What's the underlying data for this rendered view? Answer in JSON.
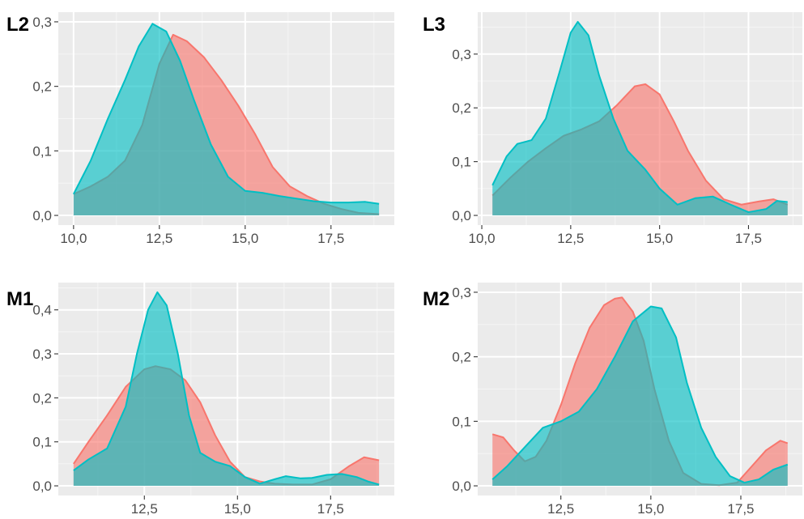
{
  "colors": {
    "panel_bg": "#EBEBEB",
    "grid_major": "#FFFFFF",
    "grid_minor": "#F5F5F5",
    "tick_text": "#4D4D4D",
    "tick_mark": "#333333",
    "series_red": "#F8766D",
    "series_teal": "#00BFC4",
    "tag_text": "#000000"
  },
  "chart_data": [
    {
      "tag": "L2",
      "type": "area",
      "subtype": "density",
      "xlim": [
        10.0,
        18.9
      ],
      "ylim": [
        0.0,
        0.3
      ],
      "x_ticks": [
        10.0,
        12.5,
        15.0,
        17.5
      ],
      "x_tick_labels": [
        "10,0",
        "12,5",
        "15,0",
        "17,5"
      ],
      "y_ticks": [
        0.0,
        0.1,
        0.2,
        0.3
      ],
      "y_tick_labels": [
        "0,0",
        "0,1",
        "0,2",
        "0,3"
      ],
      "grid": true,
      "legend": "none",
      "series": [
        {
          "color": "#F8766D",
          "x": [
            10.0,
            10.5,
            11.0,
            11.5,
            12.0,
            12.5,
            12.9,
            13.3,
            13.8,
            14.3,
            14.8,
            15.3,
            15.8,
            16.3,
            16.8,
            17.3,
            17.8,
            18.3,
            18.9
          ],
          "y": [
            0.033,
            0.045,
            0.06,
            0.085,
            0.14,
            0.235,
            0.28,
            0.27,
            0.245,
            0.21,
            0.17,
            0.125,
            0.075,
            0.045,
            0.03,
            0.018,
            0.01,
            0.004,
            0.002
          ]
        },
        {
          "color": "#00BFC4",
          "x": [
            10.0,
            10.5,
            11.0,
            11.5,
            11.9,
            12.3,
            12.7,
            13.1,
            13.5,
            14.0,
            14.5,
            15.0,
            15.5,
            16.0,
            16.5,
            17.0,
            17.5,
            18.0,
            18.5,
            18.9
          ],
          "y": [
            0.033,
            0.085,
            0.15,
            0.21,
            0.262,
            0.297,
            0.285,
            0.24,
            0.18,
            0.11,
            0.06,
            0.038,
            0.035,
            0.03,
            0.026,
            0.022,
            0.02,
            0.02,
            0.021,
            0.018
          ]
        }
      ]
    },
    {
      "tag": "L3",
      "type": "area",
      "subtype": "density",
      "xlim": [
        10.3,
        18.6
      ],
      "ylim": [
        0.0,
        0.36
      ],
      "x_ticks": [
        10.0,
        12.5,
        15.0,
        17.5
      ],
      "x_tick_labels": [
        "10,0",
        "12,5",
        "15,0",
        "17,5"
      ],
      "y_ticks": [
        0.0,
        0.1,
        0.2,
        0.3
      ],
      "y_tick_labels": [
        "0,0",
        "0,1",
        "0,2",
        "0,3"
      ],
      "grid": true,
      "legend": "none",
      "series": [
        {
          "color": "#F8766D",
          "x": [
            10.3,
            10.8,
            11.3,
            11.8,
            12.3,
            12.8,
            13.3,
            13.8,
            14.3,
            14.6,
            15.0,
            15.4,
            15.8,
            16.3,
            16.8,
            17.3,
            17.8,
            18.2,
            18.6
          ],
          "y": [
            0.037,
            0.07,
            0.1,
            0.125,
            0.148,
            0.16,
            0.175,
            0.205,
            0.24,
            0.244,
            0.225,
            0.175,
            0.12,
            0.065,
            0.03,
            0.02,
            0.026,
            0.03,
            0.02
          ]
        },
        {
          "color": "#00BFC4",
          "x": [
            10.3,
            10.7,
            11.0,
            11.4,
            11.8,
            12.2,
            12.5,
            12.7,
            13.0,
            13.3,
            13.7,
            14.1,
            14.6,
            15.0,
            15.5,
            16.0,
            16.5,
            17.0,
            17.5,
            18.0,
            18.3,
            18.6
          ],
          "y": [
            0.056,
            0.11,
            0.133,
            0.14,
            0.18,
            0.27,
            0.34,
            0.36,
            0.335,
            0.26,
            0.18,
            0.12,
            0.085,
            0.05,
            0.02,
            0.032,
            0.035,
            0.02,
            0.006,
            0.012,
            0.027,
            0.025
          ]
        }
      ]
    },
    {
      "tag": "M1",
      "type": "area",
      "subtype": "density",
      "xlim": [
        10.6,
        18.8
      ],
      "ylim": [
        0.0,
        0.44
      ],
      "x_ticks": [
        12.5,
        15.0,
        17.5
      ],
      "x_tick_labels": [
        "12,5",
        "15,0",
        "17,5"
      ],
      "y_ticks": [
        0.0,
        0.1,
        0.2,
        0.3,
        0.4
      ],
      "y_tick_labels": [
        "0,0",
        "0,1",
        "0,2",
        "0,3",
        "0,4"
      ],
      "grid": true,
      "legend": "none",
      "series": [
        {
          "color": "#F8766D",
          "x": [
            10.6,
            11.0,
            11.5,
            12.0,
            12.5,
            12.8,
            13.2,
            13.6,
            14.0,
            14.4,
            14.8,
            15.2,
            15.6,
            16.0,
            16.5,
            17.0,
            17.5,
            18.0,
            18.4,
            18.8
          ],
          "y": [
            0.05,
            0.1,
            0.16,
            0.225,
            0.265,
            0.272,
            0.265,
            0.24,
            0.19,
            0.115,
            0.055,
            0.02,
            0.01,
            0.005,
            0.003,
            0.003,
            0.015,
            0.045,
            0.065,
            0.058
          ]
        },
        {
          "color": "#00BFC4",
          "x": [
            10.6,
            11.0,
            11.5,
            12.0,
            12.3,
            12.6,
            12.85,
            13.1,
            13.4,
            13.7,
            14.0,
            14.4,
            14.8,
            15.2,
            15.6,
            16.0,
            16.3,
            16.7,
            17.0,
            17.4,
            17.8,
            18.2,
            18.5,
            18.8
          ],
          "y": [
            0.035,
            0.06,
            0.085,
            0.18,
            0.3,
            0.4,
            0.44,
            0.41,
            0.3,
            0.16,
            0.075,
            0.055,
            0.045,
            0.02,
            0.005,
            0.015,
            0.022,
            0.017,
            0.018,
            0.025,
            0.027,
            0.02,
            0.01,
            0.003
          ]
        }
      ]
    },
    {
      "tag": "M2",
      "type": "area",
      "subtype": "density",
      "xlim": [
        10.6,
        18.8
      ],
      "ylim": [
        0.0,
        0.3
      ],
      "x_ticks": [
        12.5,
        15.0,
        17.5
      ],
      "x_tick_labels": [
        "12,5",
        "15,0",
        "17,5"
      ],
      "y_ticks": [
        0.0,
        0.1,
        0.2,
        0.3
      ],
      "y_tick_labels": [
        "0,0",
        "0,1",
        "0,2",
        "0,3"
      ],
      "grid": true,
      "legend": "none",
      "series": [
        {
          "color": "#F8766D",
          "x": [
            10.6,
            10.9,
            11.2,
            11.5,
            11.8,
            12.1,
            12.5,
            12.9,
            13.3,
            13.7,
            14.0,
            14.2,
            14.5,
            14.8,
            15.1,
            15.5,
            15.9,
            16.4,
            16.9,
            17.4,
            17.8,
            18.2,
            18.6,
            18.8
          ],
          "y": [
            0.08,
            0.075,
            0.055,
            0.038,
            0.045,
            0.07,
            0.125,
            0.19,
            0.245,
            0.28,
            0.29,
            0.292,
            0.27,
            0.225,
            0.15,
            0.07,
            0.02,
            0.003,
            0.001,
            0.005,
            0.03,
            0.055,
            0.07,
            0.066
          ]
        },
        {
          "color": "#00BFC4",
          "x": [
            10.6,
            11.0,
            11.5,
            12.0,
            12.5,
            13.0,
            13.5,
            14.0,
            14.5,
            15.0,
            15.3,
            15.7,
            16.0,
            16.4,
            16.8,
            17.2,
            17.6,
            18.0,
            18.4,
            18.8
          ],
          "y": [
            0.01,
            0.03,
            0.06,
            0.09,
            0.1,
            0.115,
            0.15,
            0.2,
            0.255,
            0.278,
            0.275,
            0.23,
            0.16,
            0.09,
            0.045,
            0.015,
            0.005,
            0.01,
            0.025,
            0.033
          ]
        }
      ]
    }
  ]
}
